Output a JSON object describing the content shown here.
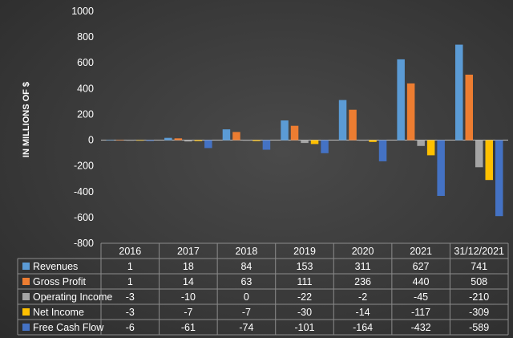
{
  "chart_data": {
    "type": "bar",
    "ylabel": "IN MILLIONS OF $",
    "ylim": [
      -800,
      1000
    ],
    "yticks": [
      1000,
      800,
      600,
      400,
      200,
      0,
      -200,
      -400,
      -600,
      -800
    ],
    "grid": false,
    "legend": "data-table-left",
    "categories": [
      "2016",
      "2017",
      "2018",
      "2019",
      "2020",
      "2021",
      "31/12/2021"
    ],
    "series": [
      {
        "name": "Revenues",
        "color": "#5b9bd5",
        "values": [
          1,
          18,
          84,
          153,
          311,
          627,
          741
        ]
      },
      {
        "name": "Gross Profit",
        "color": "#ed7d31",
        "values": [
          1,
          14,
          63,
          111,
          236,
          440,
          508
        ]
      },
      {
        "name": "Operating Income",
        "color": "#a5a5a5",
        "values": [
          -3,
          -10,
          0,
          -22,
          -2,
          -45,
          -210
        ]
      },
      {
        "name": "Net Income",
        "color": "#ffc000",
        "values": [
          -3,
          -7,
          -7,
          -30,
          -14,
          -117,
          -309
        ]
      },
      {
        "name": "Free Cash Flow",
        "color": "#4472c4",
        "values": [
          -6,
          -61,
          -74,
          -101,
          -164,
          -432,
          -589
        ]
      }
    ]
  }
}
